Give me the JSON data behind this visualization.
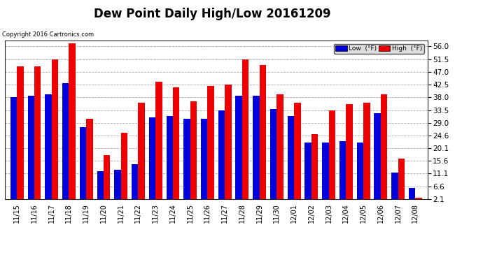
{
  "title": "Dew Point Daily High/Low 20161209",
  "copyright": "Copyright 2016 Cartronics.com",
  "dates": [
    "11/15",
    "11/16",
    "11/17",
    "11/18",
    "11/19",
    "11/20",
    "11/21",
    "11/22",
    "11/23",
    "11/24",
    "11/25",
    "11/26",
    "11/27",
    "11/28",
    "11/29",
    "11/30",
    "12/01",
    "12/02",
    "12/03",
    "12/04",
    "12/05",
    "12/06",
    "12/07",
    "12/08"
  ],
  "low": [
    38.0,
    38.5,
    39.0,
    43.0,
    27.5,
    12.0,
    12.5,
    14.5,
    31.0,
    31.5,
    30.5,
    30.5,
    33.5,
    38.5,
    38.5,
    34.0,
    31.5,
    22.0,
    22.0,
    22.5,
    22.0,
    32.5,
    11.5,
    6.0
  ],
  "high": [
    49.0,
    49.0,
    51.5,
    57.0,
    30.5,
    17.5,
    25.5,
    36.0,
    43.5,
    41.5,
    36.5,
    42.0,
    42.5,
    51.5,
    49.5,
    39.0,
    36.0,
    25.0,
    33.5,
    35.5,
    36.0,
    39.0,
    16.5,
    2.5
  ],
  "low_color": "#0000dd",
  "high_color": "#ee0000",
  "bg_color": "#ffffff",
  "grid_color": "#aaaaaa",
  "yticks": [
    2.1,
    6.6,
    11.1,
    15.6,
    20.1,
    24.6,
    29.0,
    33.5,
    38.0,
    42.5,
    47.0,
    51.5,
    56.0
  ],
  "ymin": 2.1,
  "ymax": 58.0,
  "title_fontsize": 12,
  "legend_low_label": "Low  (°F)",
  "legend_high_label": "High  (°F)"
}
